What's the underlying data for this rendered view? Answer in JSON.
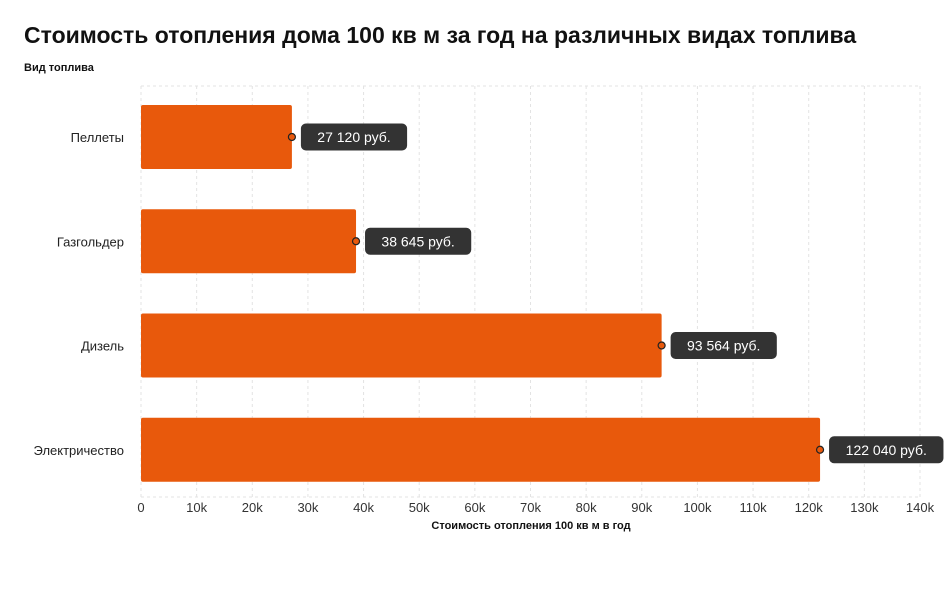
{
  "chart_data": {
    "type": "bar",
    "orientation": "horizontal",
    "title": "Стоимость отопления дома 100 кв м за год на различных видах топлива",
    "ylabel": "Вид топлива",
    "xlabel": "Стоимость отопления 100 кв м в год",
    "categories": [
      "Пеллеты",
      "Газгольдер",
      "Дизель",
      "Электричество"
    ],
    "values": [
      27120,
      38645,
      93564,
      122040
    ],
    "data_labels": [
      "27 120 руб.",
      "38 645 руб.",
      "93 564 руб.",
      "122 040 руб."
    ],
    "xlim": [
      0,
      140000
    ],
    "x_ticks": [
      0,
      10000,
      20000,
      30000,
      40000,
      50000,
      60000,
      70000,
      80000,
      90000,
      100000,
      110000,
      120000,
      130000,
      140000
    ],
    "x_tick_labels": [
      "0",
      "10k",
      "20k",
      "30k",
      "40k",
      "50k",
      "60k",
      "70k",
      "80k",
      "90k",
      "100k",
      "110k",
      "120k",
      "130k",
      "140k"
    ],
    "grid": true,
    "bar_color": "#e8590c",
    "label_bg_color": "#333333"
  }
}
